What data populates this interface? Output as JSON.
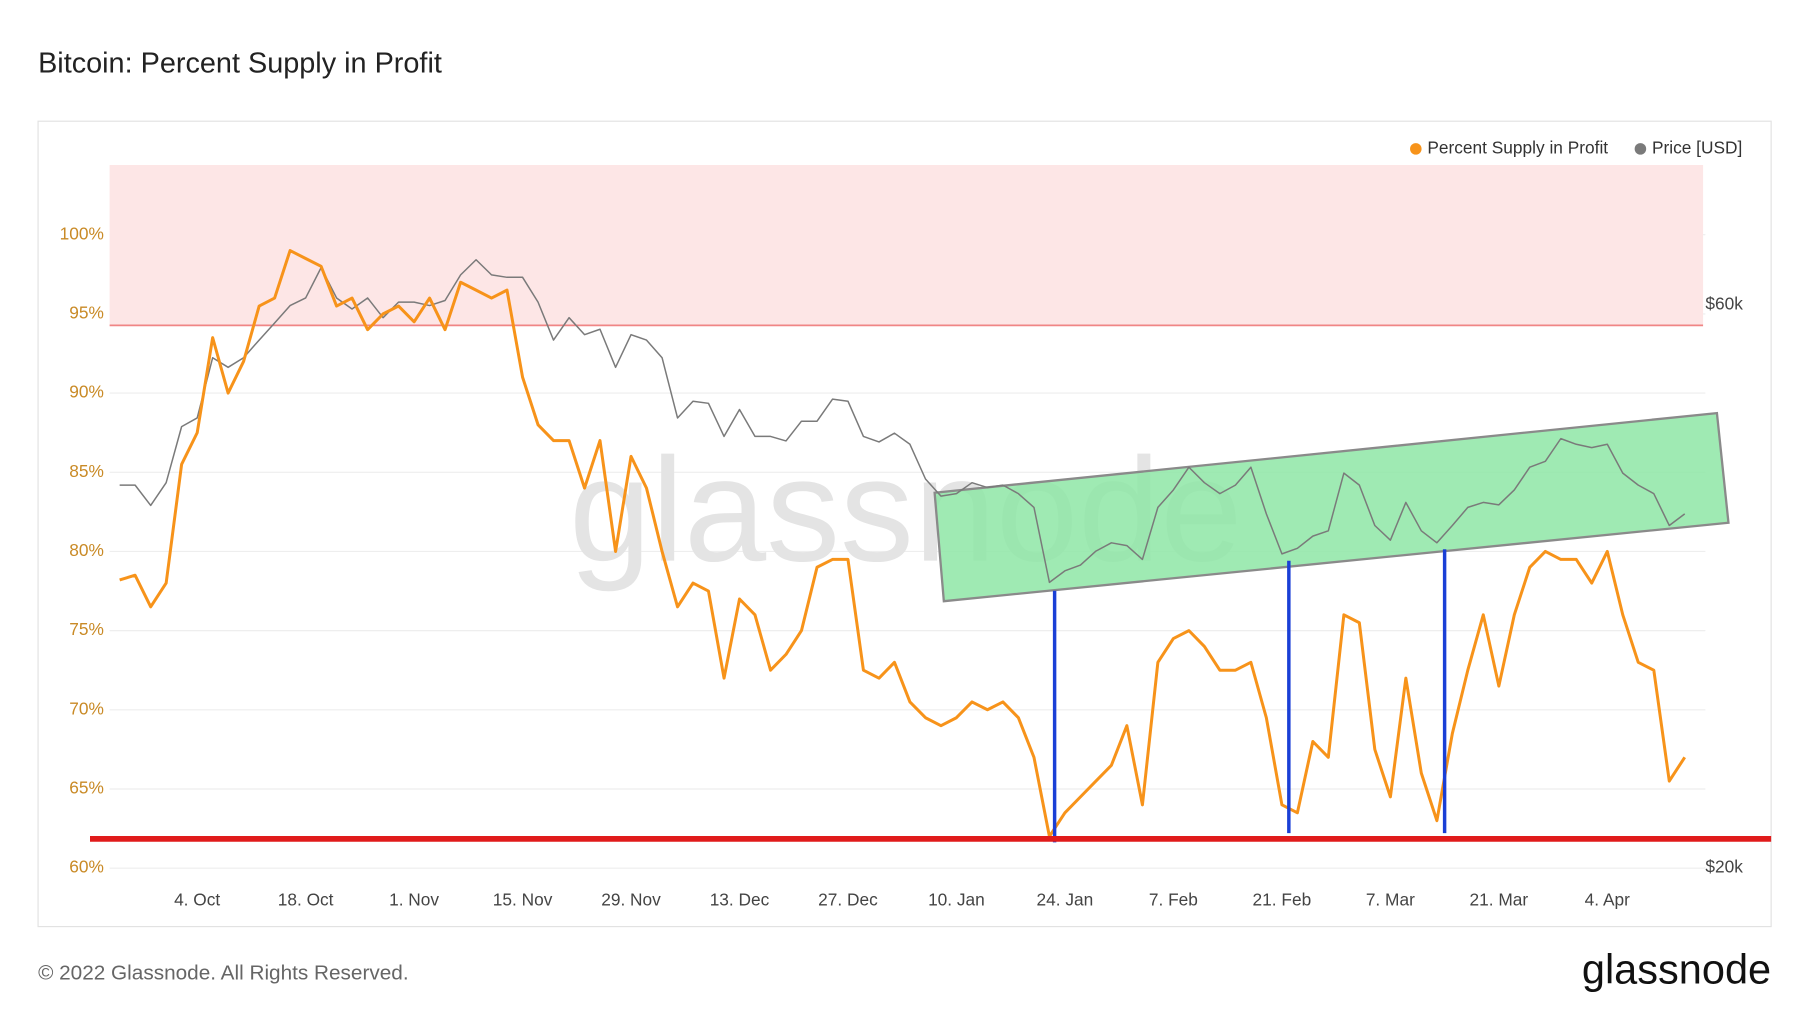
{
  "chart_data": {
    "type": "line",
    "title": "Bitcoin: Percent Supply in Profit",
    "watermark": "glassnode",
    "footer": "© 2022 Glassnode. All Rights Reserved.",
    "logo": "glassnode",
    "categories": [
      null,
      null,
      null,
      null,
      null,
      "4. Oct",
      null,
      null,
      null,
      null,
      null,
      null,
      "18. Oct",
      null,
      null,
      null,
      null,
      null,
      null,
      "1. Nov",
      null,
      null,
      null,
      null,
      null,
      null,
      "15. Nov",
      null,
      null,
      null,
      null,
      null,
      null,
      "29. Nov",
      null,
      null,
      null,
      null,
      null,
      null,
      "13. Dec",
      null,
      null,
      null,
      null,
      null,
      null,
      "27. Dec",
      null,
      null,
      null,
      null,
      null,
      null,
      "10. Jan",
      null,
      null,
      null,
      null,
      null,
      null,
      "24. Jan",
      null,
      null,
      null,
      null,
      null,
      null,
      "7. Feb",
      null,
      null,
      null,
      null,
      null,
      null,
      "21. Feb",
      null,
      null,
      null,
      null,
      null,
      null,
      "7. Mar",
      null,
      null,
      null,
      null,
      null,
      null,
      "21. Mar",
      null,
      null,
      null,
      null,
      null,
      null,
      "4. Apr",
      null,
      null,
      null,
      null,
      null
    ],
    "series": [
      {
        "name": "Percent Supply in Profit",
        "color": "#f7931a",
        "axis": "y",
        "values": [
          78.2,
          78.5,
          76.5,
          78,
          85.5,
          87.5,
          93.5,
          90,
          92,
          95.5,
          96,
          99,
          98.5,
          98,
          95.5,
          96,
          94,
          95,
          95.5,
          94.5,
          96,
          94,
          97,
          96.5,
          96,
          96.5,
          91,
          88,
          87,
          87,
          84,
          87,
          80,
          86,
          84,
          80,
          76.5,
          78,
          77.5,
          72,
          77,
          76,
          72.5,
          73.5,
          75,
          79,
          79.5,
          79.5,
          72.5,
          72,
          73,
          70.5,
          69.5,
          69,
          69.5,
          70.5,
          70,
          70.5,
          69.5,
          67,
          62,
          63.5,
          64.5,
          65.5,
          66.5,
          69,
          64,
          73,
          74.5,
          75,
          74,
          72.5,
          72.5,
          73,
          69.5,
          64,
          63.5,
          68,
          67,
          76,
          75.5,
          67.5,
          64.5,
          72,
          66,
          63,
          68.5,
          72.5,
          76,
          71.5,
          76,
          79,
          80,
          79.5,
          79.5,
          78,
          80,
          76,
          73,
          72.5,
          65.5,
          67
        ]
      },
      {
        "name": "Price [USD]",
        "color": "#7a7a7a",
        "axis": "y2",
        "values": [
          42200,
          42200,
          40560,
          42400,
          47300,
          48100,
          54100,
          53100,
          54100,
          56000,
          57900,
          59900,
          60800,
          64500,
          60800,
          59500,
          60800,
          58500,
          60300,
          60300,
          59900,
          60500,
          63600,
          65500,
          63600,
          63300,
          63300,
          60300,
          56000,
          58500,
          56600,
          57200,
          53100,
          56600,
          56000,
          54100,
          48100,
          49700,
          49500,
          46400,
          48900,
          46400,
          46400,
          46000,
          47800,
          47800,
          49900,
          49700,
          46400,
          45900,
          46700,
          45700,
          42700,
          41300,
          41500,
          42400,
          42000,
          42200,
          41500,
          40400,
          34900,
          35700,
          36100,
          37100,
          37700,
          37500,
          36500,
          40400,
          41800,
          43700,
          42400,
          41500,
          42200,
          43700,
          39900,
          36900,
          37300,
          38200,
          38600,
          43200,
          42200,
          39000,
          37900,
          40800,
          38600,
          37700,
          39000,
          40400,
          40800,
          40600,
          41800,
          43700,
          44200,
          46200,
          45700,
          45400,
          45700,
          43200,
          42200,
          41500,
          39000,
          39900
        ]
      }
    ],
    "ylim": [
      59.3,
      104.4
    ],
    "yticks": [
      {
        "value": 60,
        "label": "60%"
      },
      {
        "value": 65,
        "label": "65%"
      },
      {
        "value": 70,
        "label": "70%"
      },
      {
        "value": 75,
        "label": "75%"
      },
      {
        "value": 80,
        "label": "80%"
      },
      {
        "value": 85,
        "label": "85%"
      },
      {
        "value": 90,
        "label": "90%"
      },
      {
        "value": 95,
        "label": "95%"
      },
      {
        "value": 100,
        "label": "100%"
      }
    ],
    "y2lim": [
      19555,
      78800
    ],
    "y2ticks": [
      {
        "value": 20000,
        "label": "$20k"
      },
      {
        "value": 60000,
        "label": "$60k"
      }
    ],
    "y2_log": true,
    "grid": true,
    "legend": "top-right"
  }
}
